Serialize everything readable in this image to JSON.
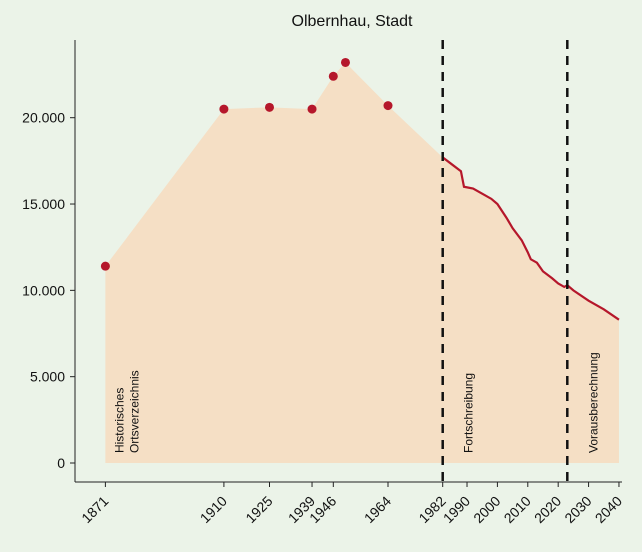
{
  "chart_data": {
    "type": "area-line",
    "title": "Olbernhau, Stadt",
    "series": [
      {
        "style": "points",
        "color": "#b5172b",
        "x": [
          1871,
          1910,
          1925,
          1939,
          1946,
          1950,
          1964
        ],
        "values": [
          11400,
          20500,
          20600,
          20500,
          22400,
          23200,
          20700
        ]
      },
      {
        "style": "line",
        "color": "#b5172b",
        "x": [
          1982,
          1985,
          1988,
          1989,
          1992,
          1995,
          1998,
          2000,
          2003,
          2005,
          2008,
          2010,
          2011,
          2013,
          2015,
          2018,
          2020,
          2022,
          2023,
          2025,
          2030,
          2035,
          2040
        ],
        "values": [
          17700,
          17300,
          16900,
          16000,
          15900,
          15600,
          15300,
          15000,
          14200,
          13600,
          12900,
          12200,
          11800,
          11600,
          11100,
          10700,
          10400,
          10200,
          10300,
          10000,
          9400,
          8900,
          8300
        ]
      }
    ],
    "area_color": "#f5dfc5",
    "vlines": [
      1982,
      2023
    ],
    "annotations": [
      [
        "Historisches",
        "Ortsverzeichnis"
      ],
      [
        "Fortschreibung"
      ],
      [
        "Vorausberechnung"
      ]
    ],
    "xlim": [
      1861,
      2041
    ],
    "xticks": [
      1871,
      1910,
      1925,
      1939,
      1946,
      1964,
      1982,
      1990,
      2000,
      2010,
      2020,
      2030,
      2040
    ],
    "ylim": [
      -1100,
      24500
    ],
    "yticks": [
      0,
      {
        "value": 5000,
        "label": "5.000"
      },
      {
        "value": 10000,
        "label": "10.000"
      },
      {
        "value": 15000,
        "label": "15.000"
      },
      {
        "value": 20000,
        "label": "20.000"
      }
    ],
    "grid": false
  }
}
